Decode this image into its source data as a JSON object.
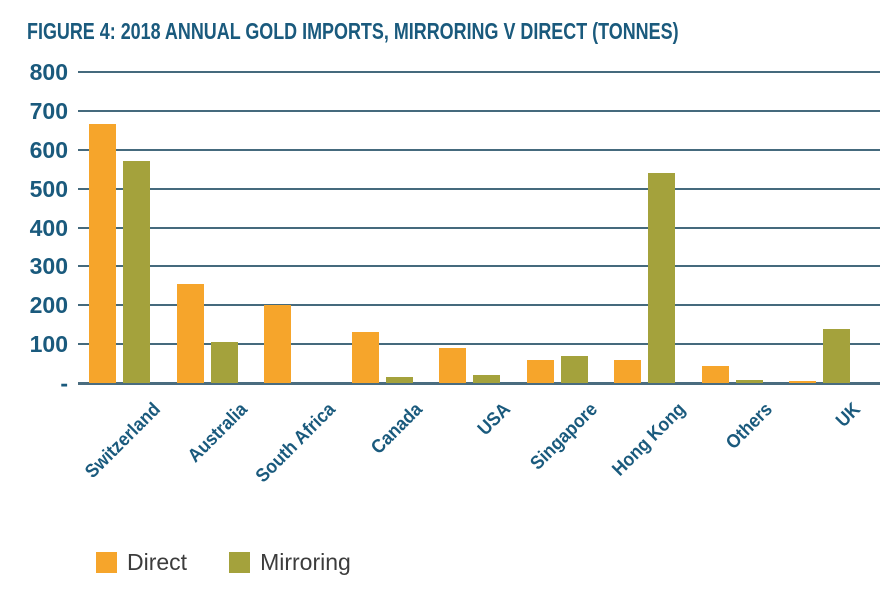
{
  "chart_data": {
    "type": "bar",
    "title": "FIGURE 4: 2018 ANNUAL GOLD IMPORTS, MIRRORING V DIRECT (TONNES)",
    "categories": [
      "Switzerland",
      "Australia",
      "South Africa",
      "Canada",
      "USA",
      "Singapore",
      "Hong Kong",
      "Others",
      "UK"
    ],
    "series": [
      {
        "name": "Direct",
        "color": "#F6A52B",
        "values": [
          665,
          255,
          200,
          130,
          90,
          60,
          60,
          45,
          5
        ]
      },
      {
        "name": "Mirroring",
        "color": "#A4A23C",
        "values": [
          570,
          105,
          0,
          15,
          20,
          70,
          540,
          8,
          140
        ]
      }
    ],
    "ylabel": "",
    "xlabel": "",
    "ylim": [
      0,
      800
    ],
    "ytick_interval": 100,
    "ytick_labels": [
      "800",
      "700",
      "600",
      "500",
      "400",
      "300",
      "200",
      "100",
      "-"
    ],
    "grid": true,
    "legend_position": "bottom-left",
    "colors": {
      "title_text": "#1A5A7D",
      "axis_text": "#1A5A7D",
      "gridline": "#456A7D",
      "legend_text": "#3C3C3C"
    }
  }
}
